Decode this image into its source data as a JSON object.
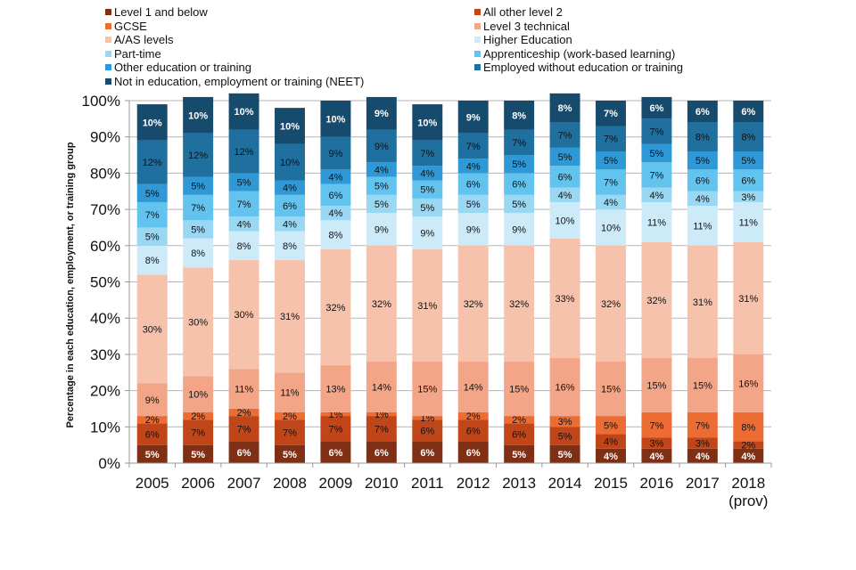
{
  "chart_data": {
    "type": "bar",
    "stacked": true,
    "title": "",
    "xlabel": "",
    "ylabel": "Percentage in each education, employment, or training group",
    "ylim": [
      0,
      100
    ],
    "yticks": [
      "0%",
      "10%",
      "20%",
      "30%",
      "40%",
      "50%",
      "60%",
      "70%",
      "80%",
      "90%",
      "100%"
    ],
    "grid": true,
    "legend_position": "top",
    "categories": [
      "2005",
      "2006",
      "2007",
      "2008",
      "2009",
      "2010",
      "2011",
      "2012",
      "2013",
      "2014",
      "2015",
      "2016",
      "2017",
      "2018"
    ],
    "category_sublabels": [
      "",
      "",
      "",
      "",
      "",
      "",
      "",
      "",
      "",
      "",
      "",
      "",
      "",
      "(prov)"
    ],
    "series": [
      {
        "name": "Level 1 and below",
        "color": "#7f2f14",
        "label_color": "#ffffff",
        "values": [
          5,
          5,
          6,
          5,
          6,
          6,
          6,
          6,
          5,
          5,
          4,
          4,
          4,
          4
        ]
      },
      {
        "name": "All other level 2",
        "color": "#c0461a",
        "label_color": "#111111",
        "values": [
          6,
          7,
          7,
          7,
          7,
          7,
          6,
          6,
          6,
          5,
          4,
          3,
          3,
          2
        ]
      },
      {
        "name": "GCSE",
        "color": "#ec6c33",
        "label_color": "#111111",
        "values": [
          2,
          2,
          2,
          2,
          1,
          1,
          1,
          2,
          2,
          3,
          5,
          7,
          7,
          8
        ]
      },
      {
        "name": "Level 3 technical",
        "color": "#f3a587",
        "label_color": "#111111",
        "values": [
          9,
          10,
          11,
          11,
          13,
          14,
          15,
          14,
          15,
          16,
          15,
          15,
          15,
          16
        ]
      },
      {
        "name": "A/AS levels",
        "color": "#f7c2ab",
        "label_color": "#111111",
        "values": [
          30,
          30,
          30,
          31,
          32,
          32,
          31,
          32,
          32,
          33,
          32,
          32,
          31,
          31
        ]
      },
      {
        "name": "Higher Education",
        "color": "#cdeaf9",
        "label_color": "#111111",
        "values": [
          8,
          8,
          8,
          8,
          8,
          9,
          9,
          9,
          9,
          10,
          10,
          11,
          11,
          11
        ]
      },
      {
        "name": "Part-time",
        "color": "#9ad7f3",
        "label_color": "#111111",
        "values": [
          5,
          5,
          4,
          4,
          4,
          5,
          5,
          5,
          5,
          4,
          4,
          4,
          4,
          3
        ]
      },
      {
        "name": "Apprenticeship (work-based learning)",
        "color": "#62c3ef",
        "label_color": "#111111",
        "values": [
          7,
          7,
          7,
          6,
          6,
          5,
          5,
          6,
          6,
          6,
          7,
          7,
          6,
          6
        ]
      },
      {
        "name": "Other education or training",
        "color": "#2e99d6",
        "label_color": "#111111",
        "values": [
          5,
          5,
          5,
          4,
          4,
          4,
          4,
          4,
          5,
          5,
          5,
          5,
          5,
          5
        ]
      },
      {
        "name": "Employed without education or training",
        "color": "#1f6f9f",
        "label_color": "#111111",
        "values": [
          12,
          12,
          12,
          10,
          9,
          9,
          7,
          7,
          7,
          7,
          7,
          7,
          8,
          8
        ]
      },
      {
        "name": "Not in education, employment or training (NEET)",
        "color": "#174b6e",
        "label_color": "#ffffff",
        "values": [
          10,
          10,
          10,
          10,
          10,
          9,
          10,
          9,
          8,
          8,
          7,
          6,
          6,
          6
        ]
      }
    ],
    "legend_order": [
      [
        "Level 1 and below",
        "All other level 2"
      ],
      [
        "GCSE",
        "Level 3 technical"
      ],
      [
        "A/AS levels",
        "Higher Education"
      ],
      [
        "Part-time",
        "Apprenticeship (work-based learning)"
      ],
      [
        "Other education or training",
        "Employed without education or training"
      ],
      [
        "Not in education, employment or training (NEET)"
      ]
    ]
  }
}
